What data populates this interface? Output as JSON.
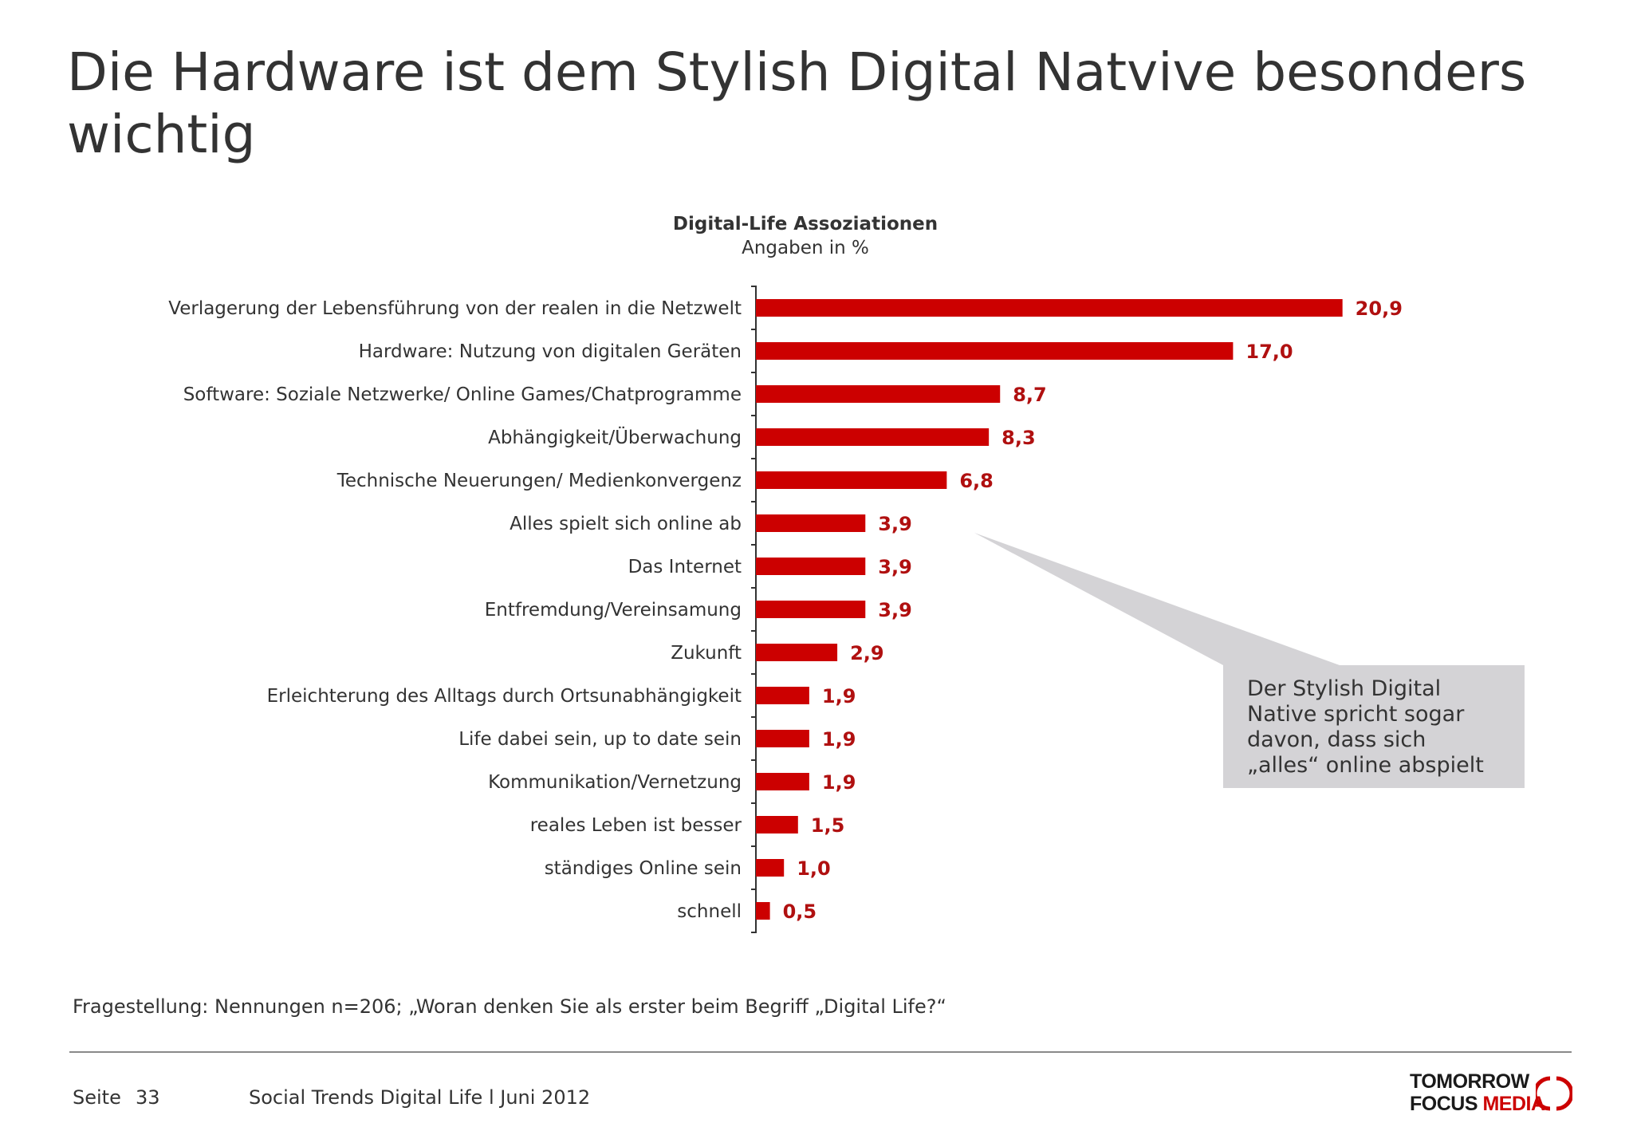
{
  "page": {
    "title": "Die Hardware ist dem Stylish Digital Natvive besonders wichtig",
    "footnote": "Fragestellung: Nennungen  n=206; „Woran denken Sie als erster beim Begriff „Digital Life?“",
    "footer": {
      "page_label": "Seite",
      "page_number": "33",
      "report": "Social Trends Digital Life l Juni 2012"
    },
    "logo": {
      "line1": "TOMORROW",
      "line2_a": "FOCUS ",
      "line2_b": "MEDIA"
    },
    "callout": "Der Stylish Digital Native spricht sogar davon, dass sich „alles“ online abspielt"
  },
  "colors": {
    "bar": "#cc0000",
    "label": "#b01010",
    "callout_bg": "#d4d3d6",
    "text": "#333333"
  },
  "chart_data": {
    "type": "bar",
    "orientation": "horizontal",
    "title": "Digital-Life Assoziationen",
    "subtitle": "Angaben in %",
    "categories": [
      "Verlagerung der Lebensführung von der realen in die Netzwelt",
      "Hardware: Nutzung von digitalen Geräten",
      "Software: Soziale Netzwerke/ Online Games/Chatprogramme",
      "Abhängigkeit/Überwachung",
      "Technische Neuerungen/ Medienkonvergenz",
      "Alles spielt sich online ab",
      "Das Internet",
      "Entfremdung/Vereinsamung",
      "Zukunft",
      "Erleichterung des Alltags durch Ortsunabhängigkeit",
      "Life dabei sein, up to date sein",
      "Kommunikation/Vernetzung",
      "reales Leben ist besser",
      "ständiges Online sein",
      "schnell"
    ],
    "values": [
      20.9,
      17.0,
      8.7,
      8.3,
      6.8,
      3.9,
      3.9,
      3.9,
      2.9,
      1.9,
      1.9,
      1.9,
      1.5,
      1.0,
      0.5
    ],
    "value_labels": [
      "20,9",
      "17,0",
      "8,7",
      "8,3",
      "6,8",
      "3,9",
      "3,9",
      "3,9",
      "2,9",
      "1,9",
      "1,9",
      "1,9",
      "1,5",
      "1,0",
      "0,5"
    ],
    "xlim": [
      0,
      22
    ],
    "grid": false,
    "legend": "none"
  }
}
